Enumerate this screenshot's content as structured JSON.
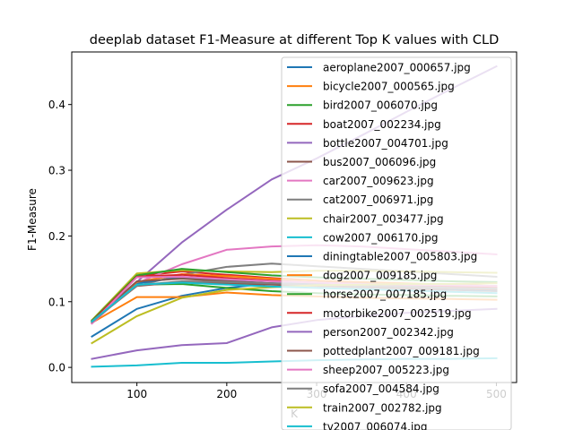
{
  "chart_data": {
    "type": "line",
    "title": "deeplab  dataset F1-Measure at different Top K values with CLD",
    "xlabel": "K",
    "ylabel": "F1-Measure",
    "x": [
      50,
      100,
      150,
      200,
      250,
      300,
      350,
      400,
      450,
      500
    ],
    "xlim": [
      27.5,
      522.5
    ],
    "ylim": [
      -0.023,
      0.48
    ],
    "xticks": [
      "100",
      "200",
      "300",
      "400",
      "500"
    ],
    "xtick_values": [
      100,
      200,
      300,
      400,
      500
    ],
    "yticks": [
      "0.0",
      "0.1",
      "0.2",
      "0.3",
      "0.4"
    ],
    "ytick_values": [
      0.0,
      0.1,
      0.2,
      0.3,
      0.4
    ],
    "grid": false,
    "legend_position": "upper right",
    "series": [
      {
        "name": "aeroplane2007_000657.jpg",
        "color": "#1f77b4",
        "values": [
          0.047,
          0.089,
          0.109,
          0.121,
          0.128,
          0.128,
          0.127,
          0.126,
          0.125,
          0.124
        ]
      },
      {
        "name": "bicycle2007_000565.jpg",
        "color": "#ff7f0e",
        "values": [
          0.068,
          0.107,
          0.107,
          0.114,
          0.11,
          0.108,
          0.106,
          0.105,
          0.104,
          0.103
        ]
      },
      {
        "name": "bird2007_006070.jpg",
        "color": "#2ca02c",
        "values": [
          0.07,
          0.126,
          0.127,
          0.121,
          0.116,
          0.113,
          0.111,
          0.11,
          0.109,
          0.108
        ]
      },
      {
        "name": "boat2007_002234.jpg",
        "color": "#d62728",
        "values": [
          0.07,
          0.139,
          0.146,
          0.141,
          0.136,
          0.132,
          0.128,
          0.125,
          0.123,
          0.12
        ]
      },
      {
        "name": "bottle2007_004701.jpg",
        "color": "#9467bd",
        "values": [
          0.067,
          0.13,
          0.19,
          0.24,
          0.286,
          0.318,
          0.353,
          0.389,
          0.424,
          0.458
        ]
      },
      {
        "name": "bus2007_006096.jpg",
        "color": "#8c564b",
        "values": [
          0.07,
          0.124,
          0.13,
          0.128,
          0.126,
          0.124,
          0.122,
          0.12,
          0.118,
          0.116
        ]
      },
      {
        "name": "car2007_009623.jpg",
        "color": "#e377c2",
        "values": [
          0.067,
          0.128,
          0.157,
          0.179,
          0.184,
          0.186,
          0.184,
          0.18,
          0.176,
          0.172
        ]
      },
      {
        "name": "cat2007_006971.jpg",
        "color": "#7f7f7f",
        "values": [
          0.072,
          0.124,
          0.141,
          0.153,
          0.158,
          0.154,
          0.15,
          0.146,
          0.142,
          0.138
        ]
      },
      {
        "name": "chair2007_003477.jpg",
        "color": "#bcbd22",
        "values": [
          0.072,
          0.143,
          0.148,
          0.146,
          0.145,
          0.147,
          0.147,
          0.146,
          0.145,
          0.144
        ]
      },
      {
        "name": "cow2007_006170.jpg",
        "color": "#17becf",
        "values": [
          0.001,
          0.003,
          0.007,
          0.007,
          0.009,
          0.011,
          0.012,
          0.013,
          0.013,
          0.014
        ]
      },
      {
        "name": "diningtable2007_005803.jpg",
        "color": "#1f77b4",
        "values": [
          0.07,
          0.128,
          0.137,
          0.132,
          0.128,
          0.125,
          0.123,
          0.121,
          0.119,
          0.117
        ]
      },
      {
        "name": "dog2007_009185.jpg",
        "color": "#ff7f0e",
        "values": [
          0.07,
          0.13,
          0.142,
          0.139,
          0.135,
          0.132,
          0.13,
          0.128,
          0.126,
          0.124
        ]
      },
      {
        "name": "horse2007_007185.jpg",
        "color": "#2ca02c",
        "values": [
          0.071,
          0.14,
          0.15,
          0.145,
          0.14,
          0.137,
          0.135,
          0.133,
          0.131,
          0.13
        ]
      },
      {
        "name": "motorbike2007_002519.jpg",
        "color": "#d62728",
        "values": [
          0.07,
          0.138,
          0.141,
          0.136,
          0.132,
          0.129,
          0.127,
          0.125,
          0.123,
          0.121
        ]
      },
      {
        "name": "person2007_002342.jpg",
        "color": "#9467bd",
        "values": [
          0.013,
          0.026,
          0.034,
          0.037,
          0.061,
          0.072,
          0.078,
          0.083,
          0.086,
          0.089
        ]
      },
      {
        "name": "pottedplant2007_009181.jpg",
        "color": "#8c564b",
        "values": [
          0.07,
          0.131,
          0.135,
          0.131,
          0.128,
          0.125,
          0.123,
          0.121,
          0.12,
          0.118
        ]
      },
      {
        "name": "sheep2007_005223.jpg",
        "color": "#e377c2",
        "values": [
          0.067,
          0.137,
          0.138,
          0.134,
          0.131,
          0.129,
          0.127,
          0.126,
          0.125,
          0.124
        ]
      },
      {
        "name": "sofa2007_004584.jpg",
        "color": "#7f7f7f",
        "values": [
          0.069,
          0.125,
          0.131,
          0.13,
          0.128,
          0.126,
          0.124,
          0.123,
          0.121,
          0.12
        ]
      },
      {
        "name": "train2007_002782.jpg",
        "color": "#bcbd22",
        "values": [
          0.037,
          0.078,
          0.106,
          0.118,
          0.122,
          0.125,
          0.126,
          0.127,
          0.127,
          0.128
        ]
      },
      {
        "name": "tv2007_006074.jpg",
        "color": "#17becf",
        "values": [
          0.07,
          0.126,
          0.129,
          0.126,
          0.123,
          0.121,
          0.119,
          0.117,
          0.115,
          0.113
        ]
      }
    ]
  }
}
